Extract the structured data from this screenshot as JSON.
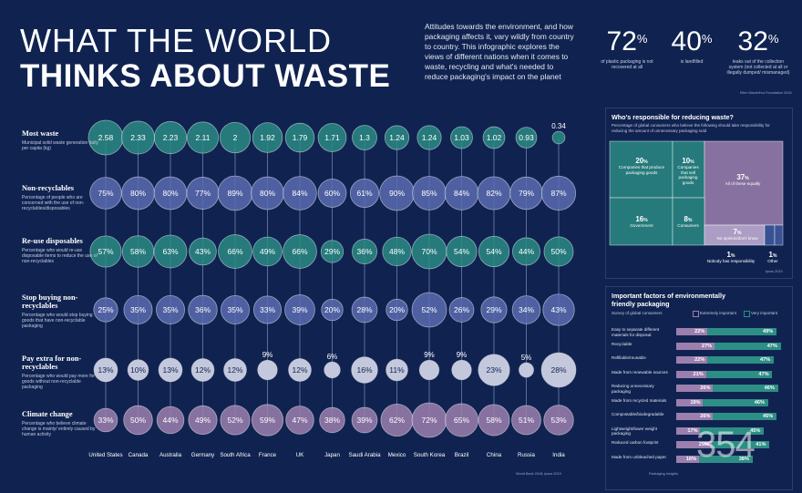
{
  "header": {
    "title_line1": "WHAT THE WORLD",
    "title_line2": "THINKS ABOUT WASTE",
    "intro": "Attitudes towards the environment, and how packaging affects it, vary wildly from country to country. This infographic explores the views of different nations when it comes to waste, recycling and what's needed to reduce packaging's impact on the planet"
  },
  "stats": [
    {
      "value": "72",
      "unit": "%",
      "caption": "of plastic packaging is not recovered at all"
    },
    {
      "value": "40",
      "unit": "%",
      "caption": "is landfilled"
    },
    {
      "value": "32",
      "unit": "%",
      "caption": "leaks out of the collection system (not collected at all or illegally dumped/ mismanaged)"
    }
  ],
  "stats_source": "Ellen MacArthur Foundation 2016",
  "footer_source": "World Bank 2018; Ipsos 2019",
  "colors": {
    "background": "#102350",
    "teal": "#2a8a82",
    "lilac": "#9c7fae",
    "bubble_blue": "#5a6bb0",
    "bubble_grey": "#c4c8dc"
  },
  "chart_data": [
    {
      "type": "bubble-grid",
      "countries": [
        "United States",
        "Canada",
        "Australia",
        "Germany",
        "South Africa",
        "France",
        "UK",
        "Japan",
        "Saudi Arabia",
        "Mexico",
        "South Korea",
        "Brazil",
        "China",
        "Russia",
        "India"
      ],
      "rows": [
        {
          "title": "Most waste",
          "desc": "Municipal solid waste generation daily per capita (kg)",
          "unit": "",
          "color": "teal",
          "values": [
            2.58,
            2.33,
            2.23,
            2.11,
            2,
            1.92,
            1.79,
            1.71,
            1.3,
            1.24,
            1.24,
            1.03,
            1.02,
            0.93,
            0.34
          ],
          "labels": [
            "2.58",
            "2.33",
            "2.23",
            "2.11",
            "2",
            "1.92",
            "1.79",
            "1.71",
            "1.3",
            "1.24",
            "1.24",
            "1.03",
            "1.02",
            "0.93",
            "0.34"
          ]
        },
        {
          "title": "Non-recyclables",
          "desc": "Percentage of people who are concerned with the use of non-recyclables/disposables",
          "unit": "%",
          "color": "bubble_blue",
          "values": [
            75,
            80,
            80,
            77,
            89,
            80,
            84,
            60,
            61,
            90,
            85,
            84,
            82,
            79,
            87
          ]
        },
        {
          "title": "Re-use disposables",
          "desc": "Percentage who would re-use disposable items to reduce the use of non-recyclables",
          "unit": "%",
          "color": "teal",
          "values": [
            57,
            58,
            63,
            43,
            66,
            49,
            66,
            29,
            36,
            48,
            70,
            54,
            54,
            44,
            50
          ]
        },
        {
          "title": "Stop buying non-recyclables",
          "desc": "Percentage who would stop buying goods that have non-recyclable packaging",
          "unit": "%",
          "color": "bubble_blue",
          "values": [
            25,
            35,
            35,
            36,
            35,
            33,
            39,
            20,
            28,
            20,
            52,
            26,
            29,
            34,
            43
          ]
        },
        {
          "title": "Pay extra for non-recyclables",
          "desc": "Percentage who would pay more for goods without non-recyclable packaging",
          "unit": "%",
          "color": "bubble_grey",
          "values": [
            13,
            10,
            13,
            12,
            12,
            9,
            12,
            6,
            16,
            11,
            9,
            9,
            23,
            5,
            28
          ]
        },
        {
          "title": "Climate change",
          "desc": "Percentage who believe climate change is mainly/ entirely caused by human activity",
          "unit": "%",
          "color": "lilac",
          "values": [
            33,
            50,
            44,
            49,
            52,
            59,
            47,
            38,
            39,
            62,
            72,
            65,
            58,
            51,
            53
          ]
        }
      ]
    },
    {
      "type": "treemap",
      "title": "Who's responsible for reducing waste?",
      "subtitle": "Percentage of global consumers who believe the following should take responsibility for reducing the amount of unnecessary packaging sold",
      "items": [
        {
          "value": 20,
          "label": "Companies that produce packaging goods"
        },
        {
          "value": 10,
          "label": "Companies that sell packaging goods"
        },
        {
          "value": 37,
          "label": "All of these equally"
        },
        {
          "value": 16,
          "label": "Government"
        },
        {
          "value": 8,
          "label": "Consumers"
        },
        {
          "value": 7,
          "label": "No opinion/don't know"
        },
        {
          "value": 1,
          "label": "Nobody has responsibility"
        },
        {
          "value": 1,
          "label": "Other"
        }
      ],
      "source": "Ipsos 2019"
    },
    {
      "type": "bar",
      "title": "Important factors of environmentally friendly packaging",
      "subtitle": "Survey of global consumers",
      "legend": [
        "Extremely important",
        "Very important"
      ],
      "series_colors": [
        "lilac",
        "teal"
      ],
      "categories": [
        "Easy to separate different materials for disposal",
        "Recyclable",
        "Refillable/reusable",
        "Made from renewable sources",
        "Reducing unnecessary packaging",
        "Made from recycled materials",
        "Compostable/biodegradable",
        "Lightweight/lower weight packaging",
        "Reduced carbon footprint",
        "Made from unbleached paper"
      ],
      "series": [
        {
          "name": "Extremely important",
          "values": [
            22,
            27,
            22,
            21,
            26,
            19,
            26,
            17,
            25,
            16
          ]
        },
        {
          "name": "Very important",
          "values": [
            49,
            47,
            47,
            47,
            46,
            46,
            45,
            45,
            41,
            38
          ]
        }
      ],
      "source": "Packaging Insights"
    }
  ],
  "watermark": "354"
}
